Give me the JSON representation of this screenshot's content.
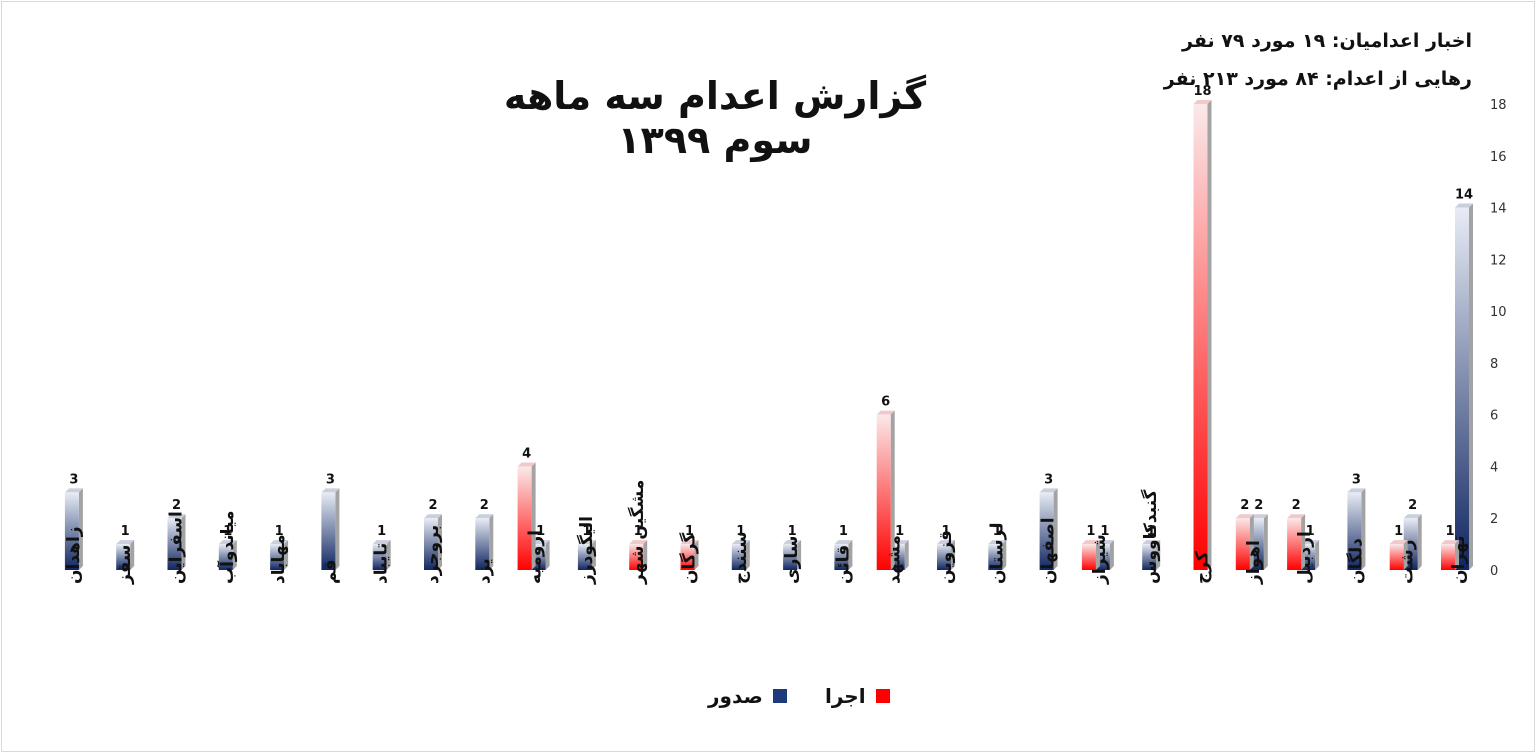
{
  "title": "گزارش اعدام سه ماهه سوم ۱۳۹۹",
  "stats": {
    "line1": "اخبار اعدامیان: ۱۹ مورد ۷۹ نفر",
    "line2": "رهایی از اعدام: ۸۴ مورد ۲۱۳ نفر"
  },
  "colors": {
    "issued": "#1f3a7a",
    "executed": "#ff0000"
  },
  "chart_data": {
    "type": "bar",
    "title": "گزارش اعدام سه ماهه سوم ۱۳۹۹",
    "xlabel": "",
    "ylabel": "",
    "ylim": [
      0,
      18
    ],
    "yticks": [
      0,
      2,
      4,
      6,
      8,
      10,
      12,
      14,
      16,
      18
    ],
    "y_axis_position": "right",
    "grid": false,
    "legend_position": "bottom",
    "categories": [
      "تهران",
      "رشت",
      "دلگان",
      "اردبیل",
      "اهواز",
      "کرج",
      "گنبدکاووس",
      "شیراز",
      "اصفهان",
      "لرستان",
      "قزوین",
      "مشهد",
      "قائن",
      "ساری",
      "سنندج",
      "گرگان",
      "مشگین شهر",
      "الیگودرز",
      "ارومیه",
      "یزد",
      "بروجرد",
      "تایباد",
      "قم",
      "مهاباد",
      "میاندوآب",
      "اسفراین",
      "سقز",
      "زاهدان"
    ],
    "series": [
      {
        "name": "صدور",
        "color": "#1f3a7a",
        "values": [
          14,
          2,
          3,
          1,
          2,
          null,
          1,
          1,
          3,
          1,
          1,
          1,
          1,
          1,
          1,
          null,
          null,
          1,
          1,
          2,
          2,
          1,
          3,
          1,
          1,
          2,
          1,
          3
        ]
      },
      {
        "name": "اجرا",
        "color": "#ff0000",
        "values": [
          1,
          1,
          null,
          2,
          2,
          18,
          null,
          1,
          null,
          null,
          null,
          6,
          null,
          null,
          null,
          1,
          1,
          null,
          4,
          null,
          null,
          null,
          null,
          null,
          null,
          null,
          null,
          null
        ]
      }
    ]
  }
}
